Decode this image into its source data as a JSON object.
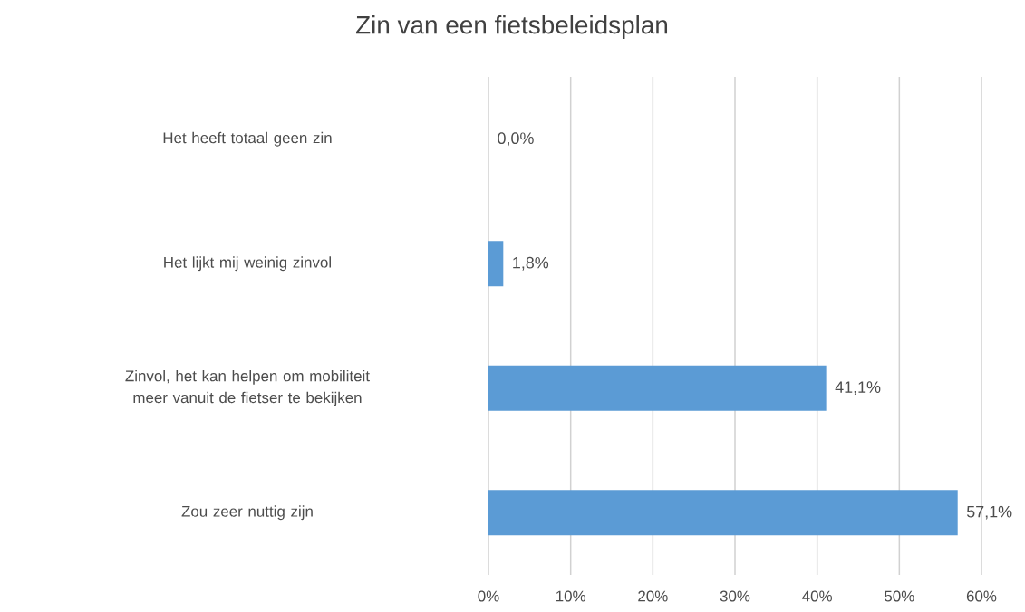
{
  "chart_data": {
    "type": "bar",
    "orientation": "horizontal",
    "title": "Zin van een fietsbeleidsplan",
    "categories": [
      "Het heeft totaal geen zin",
      "Het lijkt mij weinig zinvol",
      "Zinvol, het kan helpen om mobiliteit meer vanuit de fietser te bekijken",
      "Zou zeer nuttig zijn"
    ],
    "values": [
      0.0,
      1.8,
      41.1,
      57.1
    ],
    "value_labels": [
      "0,0%",
      "1,8%",
      "41,1%",
      "57,1%"
    ],
    "color": "#5b9bd5",
    "xlim": [
      0,
      60
    ],
    "xticks": [
      {
        "value": 0,
        "label": "0%"
      },
      {
        "value": 10,
        "label": "10%"
      },
      {
        "value": 20,
        "label": "20%"
      },
      {
        "value": 30,
        "label": "30%"
      },
      {
        "value": 40,
        "label": "40%"
      },
      {
        "value": 50,
        "label": "50%"
      },
      {
        "value": 60,
        "label": "60%"
      }
    ],
    "grid": "x"
  }
}
